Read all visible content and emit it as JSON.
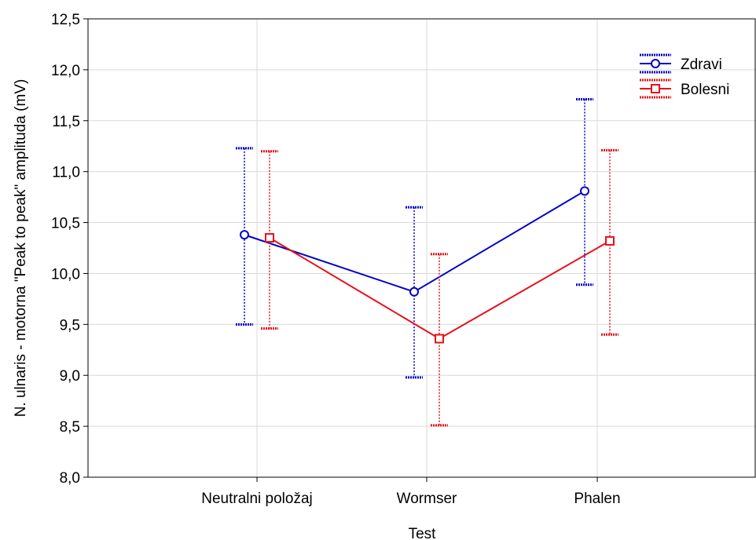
{
  "chart_data": {
    "type": "line",
    "xlabel": "Test",
    "ylabel": "N. ulnaris - motorna \"Peak to peak\" amplituda (mV)",
    "categories": [
      "Neutralni položaj",
      "Wormser",
      "Phalen"
    ],
    "ylim": [
      8.0,
      12.5
    ],
    "yticks": [
      "8,0",
      "8,5",
      "9,0",
      "9,5",
      "10,0",
      "10,5",
      "11,0",
      "11,5",
      "12,0",
      "12,5"
    ],
    "grid": true,
    "legend_position": "top-right",
    "error_bars": true,
    "series": [
      {
        "name": "Zdravi",
        "color": "#0000cc",
        "marker": "circle",
        "values": [
          10.38,
          9.82,
          10.81
        ],
        "lower": [
          9.5,
          8.98,
          9.89
        ],
        "upper": [
          11.23,
          10.65,
          11.71
        ]
      },
      {
        "name": "Bolesni",
        "color": "#e8101a",
        "marker": "square",
        "values": [
          10.35,
          9.36,
          10.32
        ],
        "lower": [
          9.46,
          8.51,
          9.4
        ],
        "upper": [
          11.2,
          10.19,
          11.21
        ]
      }
    ]
  }
}
